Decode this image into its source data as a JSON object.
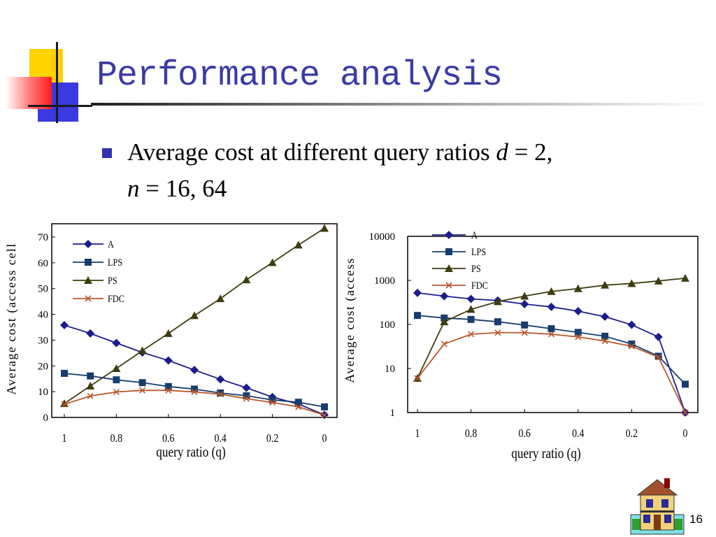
{
  "slide": {
    "title": "Performance analysis",
    "bullet": {
      "lead": "Average cost at different query ratios ",
      "d_symbol": "d",
      "d_eq": " = 2, ",
      "n_symbol": "n",
      "n_eq": " = 16, 64"
    },
    "slide_number": "16",
    "colors": {
      "title": "#3b3ba6",
      "bullet": "#3232b4"
    }
  },
  "chart_data": [
    {
      "type": "line",
      "scale": "linear",
      "x": [
        1,
        0.9,
        0.8,
        0.7,
        0.6,
        0.5,
        0.4,
        0.3,
        0.2,
        0.1,
        0
      ],
      "x_tick_labels": [
        "1",
        "0.8",
        "0.6",
        "0.4",
        "0.2",
        "0"
      ],
      "x_ticks": [
        1,
        0.8,
        0.6,
        0.4,
        0.2,
        0
      ],
      "y_ticks": [
        0,
        10,
        20,
        30,
        40,
        50,
        60,
        70
      ],
      "y_tick_labels": [
        "0",
        "10",
        "20",
        "30",
        "40",
        "50",
        "60",
        "70"
      ],
      "ylim": [
        0,
        72
      ],
      "xlabel": "query ratio (q)",
      "ylabel": "Average cost (access cell",
      "legend": "top-left",
      "series": [
        {
          "name": "A",
          "marker": "diamond",
          "color": "#1c1c8c",
          "values": [
            35.8,
            32.6,
            28.9,
            25.2,
            22.1,
            18.4,
            14.8,
            11.5,
            7.9,
            5.2,
            1.0
          ]
        },
        {
          "name": "LPS",
          "marker": "square",
          "color": "#173d6e",
          "values": [
            17.1,
            16.1,
            14.6,
            13.5,
            12.0,
            11.0,
            9.5,
            8.4,
            6.8,
            5.9,
            4.1
          ]
        },
        {
          "name": "PS",
          "marker": "triangle",
          "color": "#3d3d10",
          "values": [
            5.4,
            12.2,
            19.0,
            25.9,
            32.6,
            39.5,
            46.1,
            53.4,
            60.1,
            66.9,
            73.4
          ]
        },
        {
          "name": "FDC",
          "marker": "x",
          "color": "#b9572a",
          "values": [
            5.1,
            8.3,
            9.9,
            10.5,
            10.5,
            9.9,
            9.0,
            7.3,
            5.8,
            4.1,
            0.9
          ]
        }
      ]
    },
    {
      "type": "line",
      "scale": "log",
      "x": [
        1,
        0.9,
        0.8,
        0.7,
        0.6,
        0.5,
        0.4,
        0.3,
        0.2,
        0.1,
        0
      ],
      "x_tick_labels": [
        "1",
        "0.8",
        "0.6",
        "0.4",
        "0.2",
        "0"
      ],
      "x_ticks": [
        1,
        0.8,
        0.6,
        0.4,
        0.2,
        0
      ],
      "y_ticks": [
        1,
        10,
        100,
        1000,
        10000
      ],
      "y_tick_labels": [
        "1",
        "10",
        "100",
        "1000",
        "10000"
      ],
      "ylim": [
        1,
        10000
      ],
      "xlabel": "query ratio (q)",
      "ylabel": "Average cost (access",
      "legend": "top-center",
      "series": [
        {
          "name": "A",
          "marker": "diamond",
          "color": "#1c1c8c",
          "values": [
            520,
            440,
            380,
            350,
            290,
            250,
            200,
            150,
            98,
            52,
            1
          ]
        },
        {
          "name": "LPS",
          "marker": "square",
          "color": "#173d6e",
          "values": [
            160,
            140,
            130,
            115,
            97,
            80,
            66,
            54,
            36,
            19,
            4.4
          ]
        },
        {
          "name": "PS",
          "marker": "triangle",
          "color": "#3d3d10",
          "values": [
            6,
            115,
            220,
            330,
            440,
            560,
            650,
            780,
            850,
            970,
            1120
          ]
        },
        {
          "name": "FDC",
          "marker": "x",
          "color": "#b9572a",
          "values": [
            6,
            36,
            60,
            65,
            65,
            60,
            52,
            42,
            32,
            18,
            1
          ]
        }
      ]
    }
  ]
}
